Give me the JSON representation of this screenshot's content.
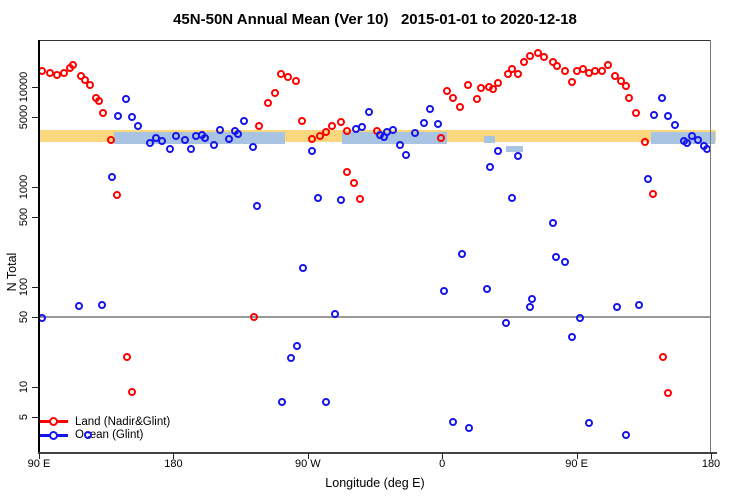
{
  "title": "45N-50N Annual Mean (Ver 10)   2015-01-01 to 2020-12-18",
  "chart_data": {
    "type": "scatter",
    "title": "45N-50N Annual Mean (Ver 10)   2015-01-01 to 2020-12-18",
    "xlabel": "Longitude (deg E)",
    "ylabel": "N Total",
    "grid": "off",
    "legend_position": "bottom-left-inside",
    "x_axis": {
      "domain": [
        90,
        540
      ],
      "note": "longitude axis wraps: 90E -> 180 -> 90W -> 0 -> 90E -> 180",
      "ticks": [
        {
          "value": 90,
          "label": "90 E"
        },
        {
          "value": 180,
          "label": "180"
        },
        {
          "value": 270,
          "label": "90 W"
        },
        {
          "value": 360,
          "label": "0"
        },
        {
          "value": 450,
          "label": "90 E"
        },
        {
          "value": 540,
          "label": "180"
        }
      ]
    },
    "y_axis": {
      "scale": "log",
      "domain": [
        2.2,
        29500
      ],
      "ticks": [
        {
          "value": 10000,
          "label": "10000"
        },
        {
          "value": 5000,
          "label": "5000"
        },
        {
          "value": 1000,
          "label": "1000"
        },
        {
          "value": 500,
          "label": "500"
        },
        {
          "value": 100,
          "label": "100"
        },
        {
          "value": 50,
          "label": "50"
        },
        {
          "value": 10,
          "label": "10"
        },
        {
          "value": 5,
          "label": "5"
        }
      ]
    },
    "reference_line": {
      "n": 50,
      "color": "#999999"
    },
    "bands": [
      {
        "name": "land-mean-band",
        "color": "#F9D77D",
        "n": [
          2820,
          3720
        ],
        "segments": [
          [
            90,
            543
          ]
        ]
      },
      {
        "name": "ocean-mean-band",
        "color": "#A9C3E2",
        "n": [
          2690,
          3550
        ],
        "segments": [
          [
            140,
            255
          ],
          [
            293,
            363
          ],
          [
            500,
            543
          ]
        ]
      },
      {
        "name": "ocean-mean-band-patch",
        "color": "#A9C3E2",
        "n": [
          2750,
          3240
        ],
        "segments": [
          [
            388,
            395
          ]
        ]
      },
      {
        "name": "ocean-mean-band-patch2",
        "color": "#A9C3E2",
        "n": [
          2240,
          2570
        ],
        "segments": [
          [
            403,
            414
          ]
        ]
      }
    ],
    "series": [
      {
        "name": "Land (Nadir&Glint)",
        "color": "#FF0000",
        "marker": "open-circle",
        "points": [
          [
            92,
            14500
          ],
          [
            97,
            13800
          ],
          [
            102,
            13200
          ],
          [
            107,
            13800
          ],
          [
            111,
            15500
          ],
          [
            113,
            16600
          ],
          [
            118,
            12900
          ],
          [
            121,
            11750
          ],
          [
            124,
            10500
          ],
          [
            128,
            7760
          ],
          [
            130,
            7240
          ],
          [
            133,
            5500
          ],
          [
            138,
            2950
          ],
          [
            142,
            830
          ],
          [
            149,
            20
          ],
          [
            152,
            8.9
          ],
          [
            234,
            50
          ],
          [
            237,
            4070
          ],
          [
            243,
            6920
          ],
          [
            248,
            8710
          ],
          [
            252,
            13500
          ],
          [
            257,
            12600
          ],
          [
            262,
            11500
          ],
          [
            266,
            4570
          ],
          [
            273,
            3020
          ],
          [
            278,
            3240
          ],
          [
            282,
            3550
          ],
          [
            286,
            4070
          ],
          [
            292,
            4470
          ],
          [
            296,
            3630
          ],
          [
            296,
            1410
          ],
          [
            301,
            1100
          ],
          [
            305,
            760
          ],
          [
            316,
            3630
          ],
          [
            359,
            3090
          ],
          [
            363,
            9120
          ],
          [
            367,
            7760
          ],
          [
            372,
            6310
          ],
          [
            377,
            10500
          ],
          [
            383,
            7590
          ],
          [
            386,
            9770
          ],
          [
            391,
            10000
          ],
          [
            394,
            9550
          ],
          [
            397,
            11000
          ],
          [
            404,
            13500
          ],
          [
            407,
            15100
          ],
          [
            411,
            13500
          ],
          [
            415,
            17800
          ],
          [
            419,
            20400
          ],
          [
            424,
            21900
          ],
          [
            428,
            20000
          ],
          [
            434,
            17800
          ],
          [
            437,
            16200
          ],
          [
            442,
            14500
          ],
          [
            447,
            11200
          ],
          [
            450,
            14500
          ],
          [
            454,
            15100
          ],
          [
            458,
            13800
          ],
          [
            462,
            14500
          ],
          [
            467,
            14500
          ],
          [
            471,
            16600
          ],
          [
            476,
            12900
          ],
          [
            480,
            11500
          ],
          [
            483,
            10250
          ],
          [
            485,
            7760
          ],
          [
            490,
            5500
          ],
          [
            496,
            2820
          ],
          [
            501,
            860
          ],
          [
            508,
            20
          ],
          [
            511,
            8.7
          ]
        ]
      },
      {
        "name": "Ocean (Glint)",
        "color": "#1414EE",
        "marker": "open-circle",
        "points": [
          [
            139,
            1260
          ],
          [
            143,
            5130
          ],
          [
            148,
            7590
          ],
          [
            152,
            5000
          ],
          [
            156,
            4070
          ],
          [
            164,
            2750
          ],
          [
            168,
            3090
          ],
          [
            172,
            2880
          ],
          [
            178,
            2400
          ],
          [
            182,
            3240
          ],
          [
            188,
            2950
          ],
          [
            192,
            2400
          ],
          [
            195,
            3240
          ],
          [
            199,
            3310
          ],
          [
            201,
            3090
          ],
          [
            207,
            2630
          ],
          [
            211,
            3720
          ],
          [
            217,
            3020
          ],
          [
            221,
            3630
          ],
          [
            223,
            3390
          ],
          [
            227,
            4570
          ],
          [
            233,
            2510
          ],
          [
            236,
            650
          ],
          [
            273,
            2290
          ],
          [
            277,
            780
          ],
          [
            292,
            740
          ],
          [
            302,
            3800
          ],
          [
            306,
            3980
          ],
          [
            311,
            5620
          ],
          [
            318,
            3310
          ],
          [
            321,
            3160
          ],
          [
            323,
            3550
          ],
          [
            327,
            3720
          ],
          [
            332,
            2630
          ],
          [
            336,
            2090
          ],
          [
            342,
            3470
          ],
          [
            348,
            4370
          ],
          [
            352,
            6030
          ],
          [
            357,
            4270
          ],
          [
            373,
            214
          ],
          [
            392,
            1590
          ],
          [
            397,
            2290
          ],
          [
            407,
            780
          ],
          [
            411,
            2040
          ],
          [
            434,
            437
          ],
          [
            436,
            200
          ],
          [
            442,
            178
          ],
          [
            498,
            1200
          ],
          [
            502,
            5250
          ],
          [
            507,
            7760
          ],
          [
            511,
            5130
          ],
          [
            516,
            4170
          ],
          [
            522,
            2880
          ],
          [
            524,
            2750
          ],
          [
            527,
            3240
          ],
          [
            531,
            2950
          ],
          [
            535,
            2570
          ],
          [
            537,
            2400
          ],
          [
            92,
            49
          ],
          [
            117,
            65
          ],
          [
            132,
            67
          ],
          [
            123,
            3.3
          ],
          [
            267,
            155
          ],
          [
            288,
            54
          ],
          [
            263,
            26
          ],
          [
            259,
            19.5
          ],
          [
            253,
            7.1
          ],
          [
            282,
            7.2
          ],
          [
            361,
            91
          ],
          [
            390,
            95
          ],
          [
            420,
            76
          ],
          [
            419,
            64
          ],
          [
            403,
            44
          ],
          [
            367,
            4.5
          ],
          [
            378,
            3.9
          ],
          [
            477,
            64
          ],
          [
            492,
            67
          ],
          [
            452,
            49
          ],
          [
            447,
            32
          ],
          [
            458,
            4.4
          ],
          [
            483,
            3.3
          ]
        ]
      }
    ]
  }
}
